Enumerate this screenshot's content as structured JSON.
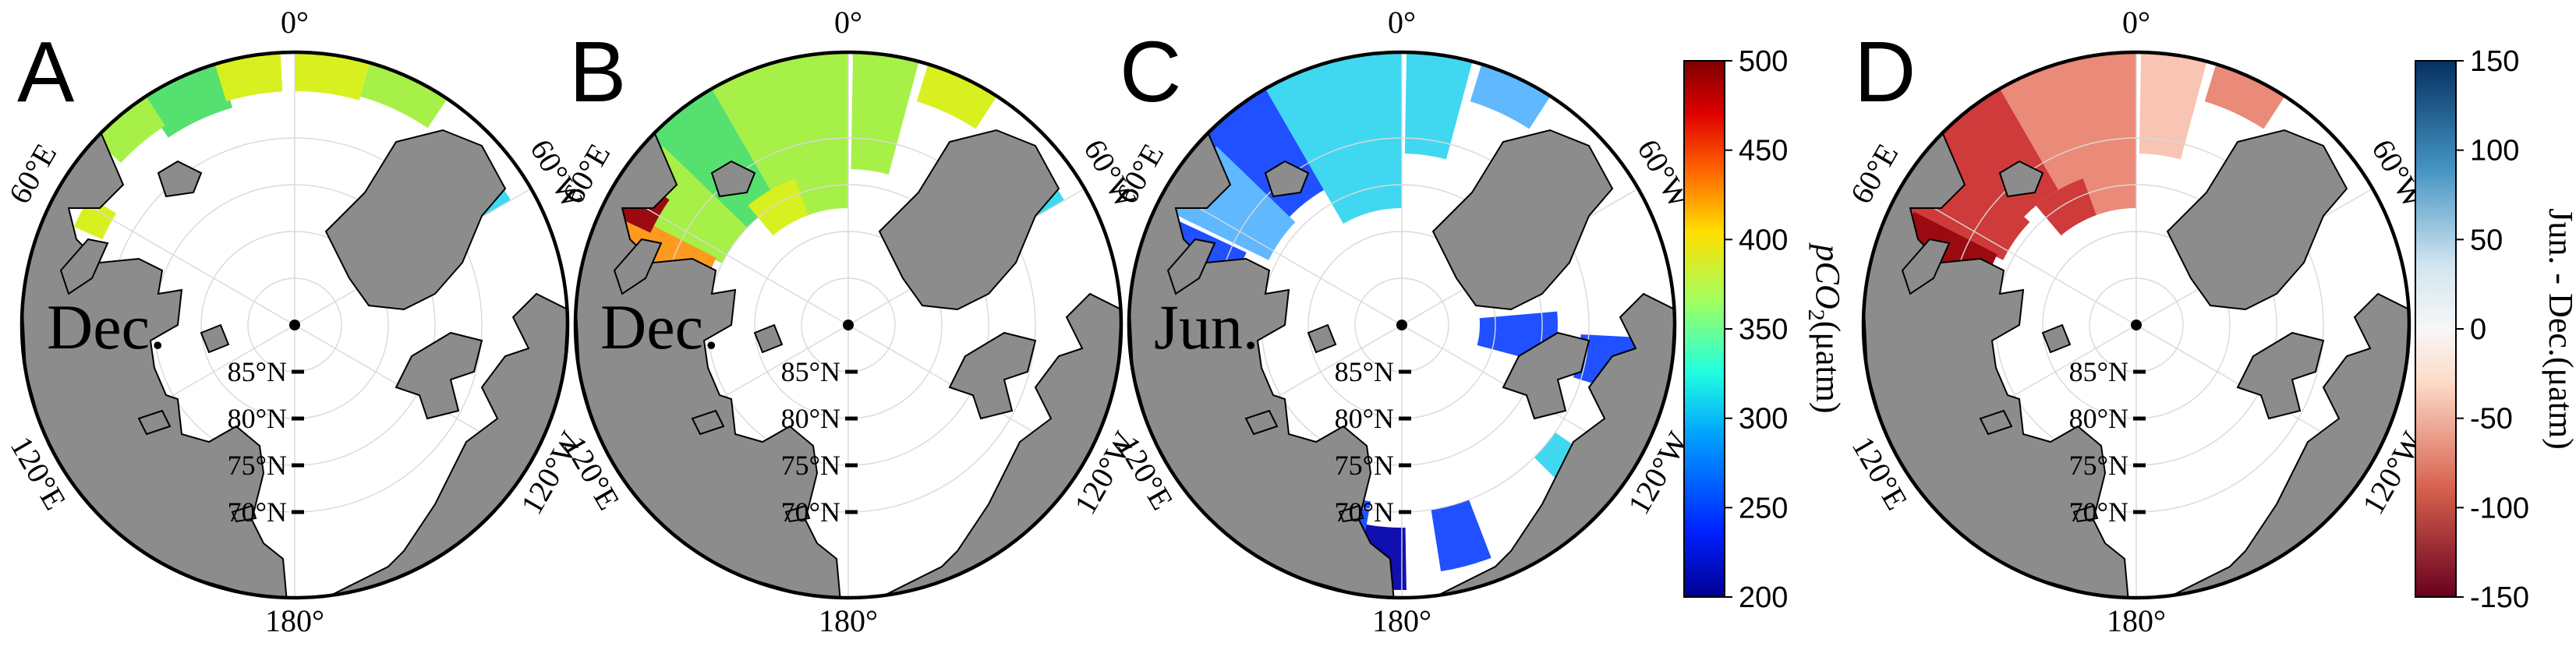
{
  "colors": {
    "land": "#8c8c8c",
    "ocean": "#ffffff",
    "pole_marker": "#000000",
    "pco2_scale": [
      "#00008f",
      "#0020ff",
      "#00a0ff",
      "#20ffdf",
      "#9fff60",
      "#ffdf00",
      "#ff6000",
      "#df0000",
      "#7f0000"
    ],
    "diff_scale": [
      "#67001f",
      "#d6604d",
      "#fddbc7",
      "#f7f7f7",
      "#d1e5f0",
      "#4393c3",
      "#053061"
    ]
  },
  "map": {
    "projection": "north-polar-stereographic",
    "lat_labels": [
      "85°N",
      "80°N",
      "75°N",
      "70°N"
    ],
    "lon_labels": {
      "top": "0°",
      "bottom": "180°",
      "upper_left": "60°E",
      "lower_left": "120°E",
      "upper_right": "60°W",
      "lower_right": "120°W"
    }
  },
  "panels": [
    {
      "letter": "A",
      "month": "Dec.",
      "fill": "pco2",
      "pattern": "A"
    },
    {
      "letter": "B",
      "month": "Dec.",
      "fill": "pco2",
      "pattern": "B"
    },
    {
      "letter": "C",
      "month": "Jun.",
      "fill": "pco2",
      "pattern": "C"
    },
    {
      "letter": "D",
      "month": "",
      "fill": "diff",
      "pattern": "D"
    }
  ],
  "colorbars": {
    "pco2": {
      "ticks": [
        "500",
        "450",
        "400",
        "350",
        "300",
        "250",
        "200"
      ],
      "title_main": "pCO",
      "title_sub": "2",
      "title_unit": "(μatm)"
    },
    "diff": {
      "ticks": [
        "150",
        "100",
        "50",
        "0",
        "-50",
        "-100",
        "-150"
      ],
      "title": "Jun. - Dec.(μatm)"
    }
  }
}
